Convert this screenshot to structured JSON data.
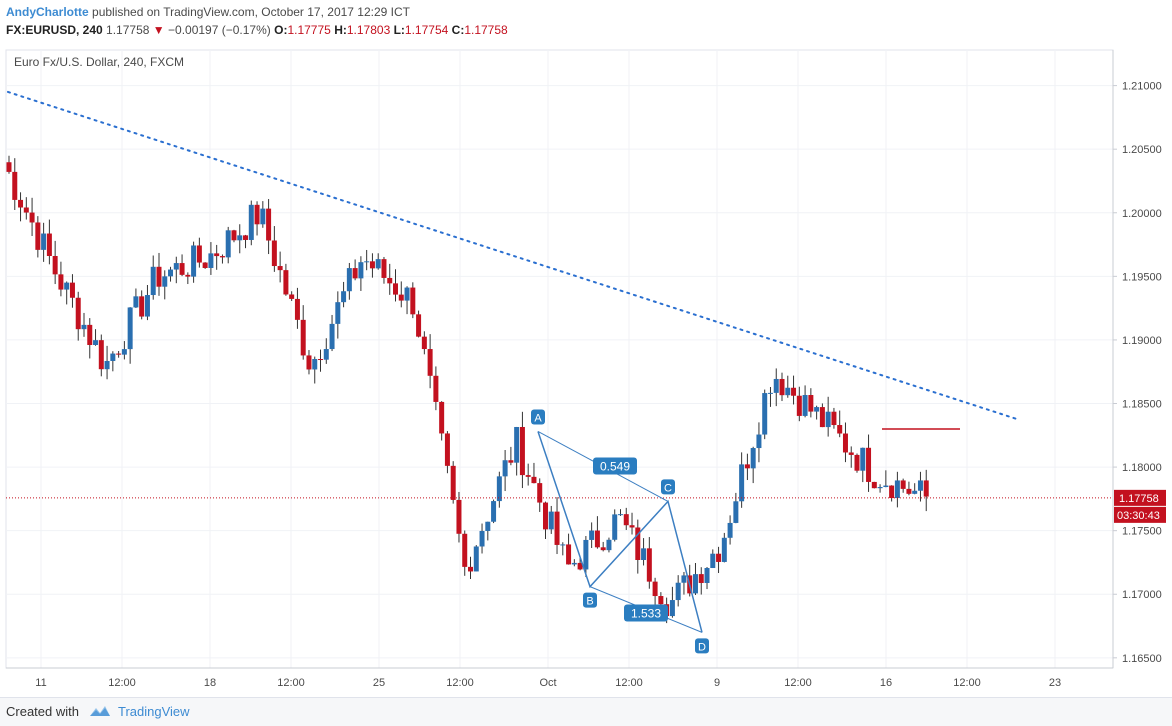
{
  "header": {
    "author": "AndyCharlotte",
    "published": "published on TradingView.com, October 17, 2017 12:29 ICT",
    "symbol": "FX:EURUSD, 240",
    "last": "1.17758",
    "change_arrow": "▼",
    "change": "−0.00197 (−0.17%)",
    "o_label": "O:",
    "o_value": "1.17775",
    "h_label": "H:",
    "h_value": "1.17803",
    "l_label": "L:",
    "l_value": "1.17754",
    "c_label": "C:",
    "c_value": "1.17758"
  },
  "chart_title": "Euro Fx/U.S. Dollar, 240, FXCM",
  "footer": {
    "created_with": "Created with",
    "brand": "TradingView"
  },
  "colors": {
    "up": "#2a6fb0",
    "down": "#c3111f",
    "trendline": "#2a6fd0",
    "pattern": "#3d7fc2",
    "price_line": "#c3111f",
    "label_bg": "#2a7dc0"
  },
  "chart_data": {
    "type": "candlestick",
    "title": "Euro Fx/U.S. Dollar, 240, FXCM",
    "x_ticks": [
      "11",
      "12:00",
      "18",
      "12:00",
      "25",
      "12:00",
      "Oct",
      "12:00",
      "9",
      "12:00",
      "16",
      "12:00",
      "23"
    ],
    "y_ticks": [
      "1.21000",
      "1.20500",
      "1.20000",
      "1.19500",
      "1.19000",
      "1.18500",
      "1.18000",
      "1.17500",
      "1.17000",
      "1.16500"
    ],
    "ylim": [
      1.1642,
      1.2128
    ],
    "current_price": "1.17758",
    "countdown": "03:30:43",
    "anchors": [
      {
        "week": "Sep 8 close",
        "price": 1.204
      },
      {
        "week": "Sep 11",
        "price": 1.1955
      },
      {
        "week": "Sep 14",
        "price": 1.188
      },
      {
        "week": "Sep 15",
        "price": 1.195
      },
      {
        "week": "Sep 18",
        "price": 1.1965
      },
      {
        "week": "Sep 20",
        "price": 1.2
      },
      {
        "week": "Sep 21",
        "price": 1.188
      },
      {
        "week": "Sep 22",
        "price": 1.1965
      },
      {
        "week": "Sep 25",
        "price": 1.193
      },
      {
        "week": "Sep 27",
        "price": 1.172
      },
      {
        "week": "Sep 29",
        "price": 1.182
      },
      {
        "week": "Oct 3",
        "price": 1.172
      },
      {
        "week": "Oct 5",
        "price": 1.176
      },
      {
        "week": "Oct 6",
        "price": 1.1692
      },
      {
        "week": "Oct 9",
        "price": 1.174
      },
      {
        "week": "Oct 12",
        "price": 1.1875
      },
      {
        "week": "Oct 13",
        "price": 1.1835
      },
      {
        "week": "Oct 16",
        "price": 1.1795
      },
      {
        "week": "Oct 17",
        "price": 1.1776
      }
    ],
    "trendline": {
      "start": {
        "week": "Sep 8",
        "price": 1.2095
      },
      "end": {
        "week": "Oct 20",
        "price": 1.1838
      }
    },
    "horizontal_ray": {
      "price": 1.183
    },
    "pattern": {
      "points": [
        {
          "label": "A",
          "price": 1.1828
        },
        {
          "label": "B",
          "price": 1.1706
        },
        {
          "label": "C",
          "price": 1.1773
        },
        {
          "label": "D",
          "price": 1.167
        }
      ],
      "ratios": [
        "0.549",
        "1.533"
      ]
    }
  }
}
